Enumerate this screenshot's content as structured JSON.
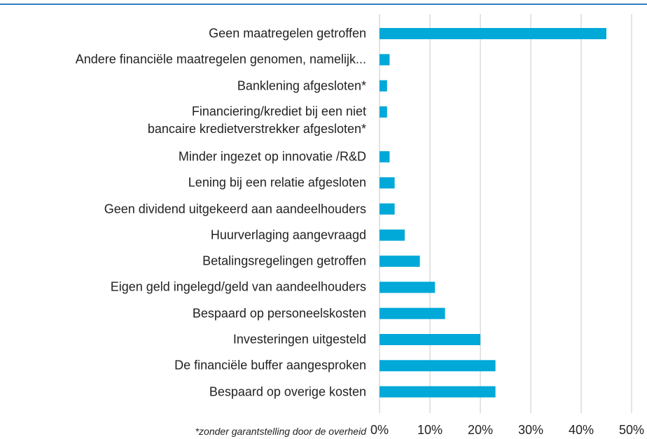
{
  "chart_data": {
    "type": "barh",
    "categories": [
      "Geen maatregelen getroffen",
      "Andere financiële maatregelen genomen, namelijk...",
      "Banklening afgesloten*",
      "Financiering/krediet bij een niet\nbancaire kredietverstrekker afgesloten*",
      "Minder ingezet op innovatie /R&D",
      "Lening bij een relatie afgesloten",
      "Geen dividend uitgekeerd aan aandeelhouders",
      "Huurverlaging aangevraagd",
      "Betalingsregelingen getroffen",
      "Eigen geld ingelegd/geld van aandeelhouders",
      "Bespaard op personeelskosten",
      "Investeringen uitgesteld",
      "De financiële buffer aangesproken",
      "Bespaard op overige kosten"
    ],
    "values": [
      45,
      2,
      1.5,
      1.5,
      2,
      3,
      3,
      5,
      8,
      11,
      13,
      20,
      23,
      23
    ],
    "color": "#00a9d8",
    "xlim": [
      0,
      50
    ],
    "xticks": [
      {
        "value": 0,
        "label": "0%"
      },
      {
        "value": 10,
        "label": "10%"
      },
      {
        "value": 20,
        "label": "20%"
      },
      {
        "value": 30,
        "label": "30%"
      },
      {
        "value": 40,
        "label": "40%"
      },
      {
        "value": 50,
        "label": "50%"
      }
    ],
    "grid": true,
    "footnote": "*zonder garantstelling door de overheid"
  }
}
